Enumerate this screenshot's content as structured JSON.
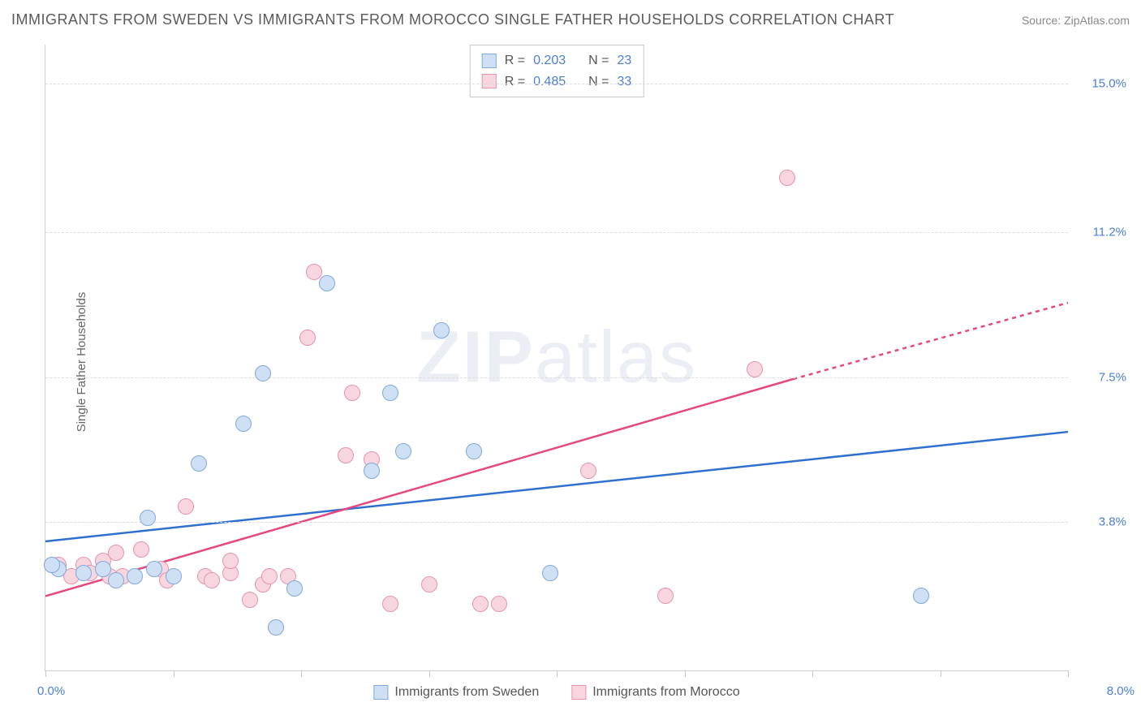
{
  "title": "IMMIGRANTS FROM SWEDEN VS IMMIGRANTS FROM MOROCCO SINGLE FATHER HOUSEHOLDS CORRELATION CHART",
  "source_label": "Source: ",
  "source_name": "ZipAtlas.com",
  "ylabel": "Single Father Households",
  "watermark_a": "ZIP",
  "watermark_b": "atlas",
  "chart": {
    "type": "scatter",
    "background_color": "#ffffff",
    "grid_color": "#dcdcdc",
    "axis_color": "#d0d0d0",
    "tick_color": "#4a7fd6",
    "xlim": [
      0.0,
      8.0
    ],
    "ylim": [
      0.0,
      16.0
    ],
    "y_ticks": [
      3.8,
      7.5,
      11.2,
      15.0
    ],
    "y_tick_labels": [
      "3.8%",
      "7.5%",
      "11.2%",
      "15.0%"
    ],
    "x_tick_positions": [
      0.0,
      1.0,
      2.0,
      3.0,
      4.0,
      5.0,
      6.0,
      7.0,
      8.0
    ],
    "x_min_label": "0.0%",
    "x_max_label": "8.0%",
    "marker_radius": 10,
    "marker_stroke_width": 1.5,
    "line_width": 2.5
  },
  "series": {
    "sweden": {
      "label": "Immigrants from Sweden",
      "fill": "#cfe0f5",
      "stroke": "#7fa8db",
      "line_color": "#2f6fd0",
      "R": "0.203",
      "N": "23",
      "points": [
        [
          0.05,
          2.7
        ],
        [
          0.1,
          2.6
        ],
        [
          0.3,
          2.5
        ],
        [
          0.45,
          2.6
        ],
        [
          0.55,
          2.3
        ],
        [
          0.7,
          2.4
        ],
        [
          0.8,
          3.9
        ],
        [
          0.85,
          2.6
        ],
        [
          1.0,
          2.4
        ],
        [
          1.2,
          5.3
        ],
        [
          1.55,
          6.3
        ],
        [
          1.7,
          7.6
        ],
        [
          1.8,
          1.1
        ],
        [
          1.95,
          2.1
        ],
        [
          2.2,
          9.9
        ],
        [
          2.55,
          5.1
        ],
        [
          2.7,
          7.1
        ],
        [
          2.8,
          5.6
        ],
        [
          3.1,
          8.7
        ],
        [
          3.35,
          5.6
        ],
        [
          3.95,
          2.5
        ],
        [
          6.85,
          1.9
        ],
        [
          0.05,
          2.7
        ]
      ],
      "trend": {
        "x1": 0.0,
        "y1": 3.3,
        "x2": 8.0,
        "y2": 6.1
      }
    },
    "morocco": {
      "label": "Immigrants from Morocco",
      "fill": "#f7d6df",
      "stroke": "#e693ac",
      "line_color": "#e5487c",
      "R": "0.485",
      "N": "33",
      "points": [
        [
          0.1,
          2.7
        ],
        [
          0.2,
          2.4
        ],
        [
          0.3,
          2.7
        ],
        [
          0.35,
          2.5
        ],
        [
          0.45,
          2.8
        ],
        [
          0.5,
          2.4
        ],
        [
          0.55,
          3.0
        ],
        [
          0.6,
          2.4
        ],
        [
          0.75,
          3.1
        ],
        [
          0.9,
          2.6
        ],
        [
          0.95,
          2.3
        ],
        [
          1.1,
          4.2
        ],
        [
          1.25,
          2.4
        ],
        [
          1.3,
          2.3
        ],
        [
          1.45,
          2.5
        ],
        [
          1.45,
          2.8
        ],
        [
          1.6,
          1.8
        ],
        [
          1.7,
          2.2
        ],
        [
          1.75,
          2.4
        ],
        [
          1.9,
          2.4
        ],
        [
          2.05,
          8.5
        ],
        [
          2.1,
          10.2
        ],
        [
          2.35,
          5.5
        ],
        [
          2.4,
          7.1
        ],
        [
          2.55,
          5.4
        ],
        [
          2.7,
          1.7
        ],
        [
          3.0,
          2.2
        ],
        [
          3.4,
          1.7
        ],
        [
          3.55,
          1.7
        ],
        [
          4.25,
          5.1
        ],
        [
          4.85,
          1.9
        ],
        [
          5.55,
          7.7
        ],
        [
          5.8,
          12.6
        ]
      ],
      "trend_solid": {
        "x1": 0.0,
        "y1": 1.9,
        "x2": 5.85,
        "y2": 7.45
      },
      "trend_dash": {
        "x1": 5.85,
        "y1": 7.45,
        "x2": 8.0,
        "y2": 9.4
      }
    }
  },
  "stats_labels": {
    "R": "R =",
    "N": "N ="
  }
}
